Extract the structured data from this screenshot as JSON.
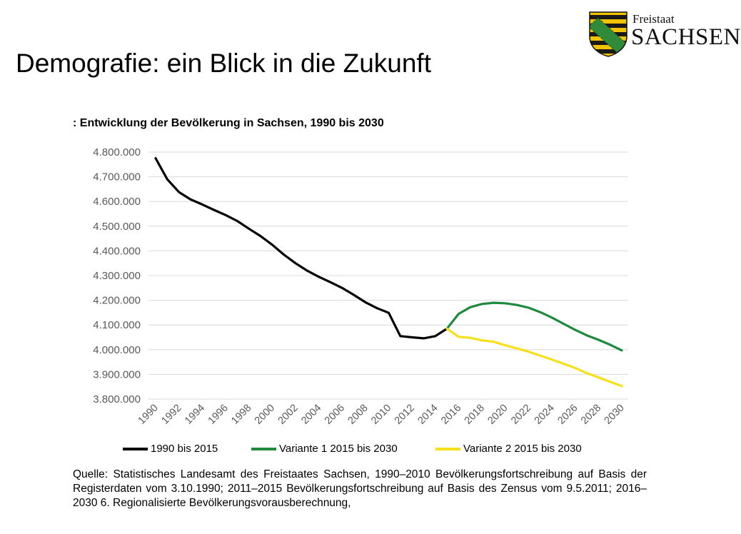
{
  "header": {
    "title": "Demografie: ein Blick in die Zukunft",
    "logo": {
      "line1": "Freistaat",
      "line2": "SACHSEN"
    }
  },
  "chart_data": {
    "type": "line",
    "title": ": Entwicklung der Bevölkerung in Sachsen, 1990 bis 2030",
    "xlabel": "",
    "ylabel": "",
    "ylim": [
      3800000,
      4800000
    ],
    "xlim": [
      1990,
      2030
    ],
    "grid": true,
    "legend_position": "bottom",
    "y_ticks": [
      "3.800.000",
      "3.900.000",
      "4.000.000",
      "4.100.000",
      "4.200.000",
      "4.300.000",
      "4.400.000",
      "4.500.000",
      "4.600.000",
      "4.700.000",
      "4.800.000"
    ],
    "y_tick_values": [
      3800000,
      3900000,
      4000000,
      4100000,
      4200000,
      4300000,
      4400000,
      4500000,
      4600000,
      4700000,
      4800000
    ],
    "x_ticks": [
      "1990",
      "1992",
      "1994",
      "1996",
      "1998",
      "2000",
      "2002",
      "2004",
      "2006",
      "2008",
      "2010",
      "2012",
      "2014",
      "2016",
      "2018",
      "2020",
      "2022",
      "2024",
      "2026",
      "2028",
      "2030"
    ],
    "x_tick_values": [
      1990,
      1992,
      1994,
      1996,
      1998,
      2000,
      2002,
      2004,
      2006,
      2008,
      2010,
      2012,
      2014,
      2016,
      2018,
      2020,
      2022,
      2024,
      2026,
      2028,
      2030
    ],
    "series": [
      {
        "name": "1990 bis 2015",
        "color": "#000000",
        "x": [
          1990,
          1991,
          1992,
          1993,
          1994,
          1995,
          1996,
          1997,
          1998,
          1999,
          2000,
          2001,
          2002,
          2003,
          2004,
          2005,
          2006,
          2007,
          2008,
          2009,
          2010,
          2011,
          2012,
          2013,
          2014,
          2015
        ],
        "values": [
          4775000,
          4690000,
          4638000,
          4608000,
          4588000,
          4566000,
          4545000,
          4521000,
          4490000,
          4460000,
          4425000,
          4385000,
          4350000,
          4320000,
          4295000,
          4273000,
          4250000,
          4222000,
          4192000,
          4168000,
          4149000,
          4055000,
          4050000,
          4046000,
          4055000,
          4085000
        ]
      },
      {
        "name": "Variante 1 2015 bis 2030",
        "color": "#1e8a3e",
        "x": [
          2015,
          2016,
          2017,
          2018,
          2019,
          2020,
          2021,
          2022,
          2023,
          2024,
          2025,
          2026,
          2027,
          2028,
          2029,
          2030
        ],
        "values": [
          4085000,
          4145000,
          4172000,
          4185000,
          4190000,
          4188000,
          4181000,
          4170000,
          4152000,
          4130000,
          4105000,
          4080000,
          4058000,
          4040000,
          4020000,
          3997000
        ]
      },
      {
        "name": "Variante 2 2015 bis 2030",
        "color": "#f5e01a",
        "x": [
          2015,
          2016,
          2017,
          2018,
          2019,
          2020,
          2021,
          2022,
          2023,
          2024,
          2025,
          2026,
          2027,
          2028,
          2029,
          2030
        ],
        "values": [
          4085000,
          4052000,
          4048000,
          4038000,
          4032000,
          4018000,
          4005000,
          3992000,
          3976000,
          3960000,
          3943000,
          3926000,
          3905000,
          3888000,
          3870000,
          3853000
        ]
      }
    ]
  },
  "source": {
    "text": "Quelle: Statistisches Landesamt des Freistaates Sachsen, 1990–2010 Bevölkerungsfortschreibung auf Basis der Registerdaten vom 3.10.1990; 2011–2015 Bevölkerungsfortschreibung auf Basis des Zensus vom 9.5.2011; 2016–2030 6. Regionalisierte Bevölkerungsvorausberechnung,"
  },
  "colors": {
    "grid": "#d9d9d9",
    "axis_text": "#595959",
    "coat_yellow": "#f2c400",
    "coat_black": "#1a1a1a",
    "coat_green": "#2f8a3a"
  },
  "icons": {
    "logo": "saxony-coat-of-arms-icon"
  }
}
